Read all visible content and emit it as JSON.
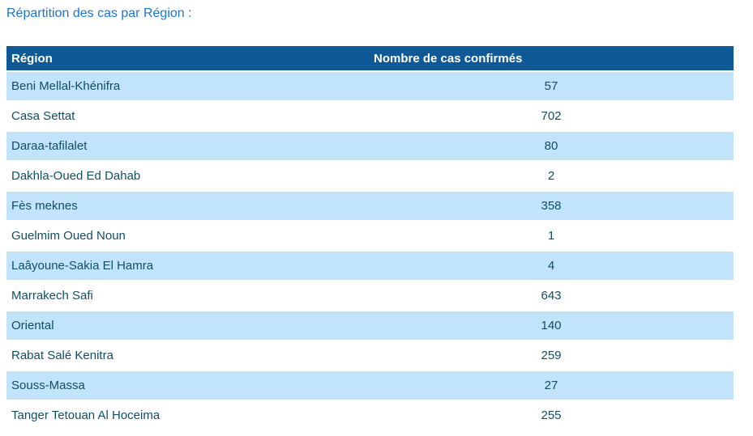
{
  "page": {
    "title": "Répartition des cas par Région :"
  },
  "table": {
    "columns": [
      {
        "label": "Région"
      },
      {
        "label": "Nombre de cas confirmés"
      }
    ],
    "rows": [
      {
        "region": "Beni Mellal-Khénifra",
        "cases": "57"
      },
      {
        "region": "Casa Settat",
        "cases": "702"
      },
      {
        "region": "Daraa-tafilalet",
        "cases": "80"
      },
      {
        "region": "Dakhla-Oued Ed Dahab",
        "cases": "2"
      },
      {
        "region": "Fès meknes",
        "cases": "358"
      },
      {
        "region": "Guelmim Oued Noun",
        "cases": "1"
      },
      {
        "region": "Laâyoune-Sakia El Hamra",
        "cases": "4"
      },
      {
        "region": "Marrakech Safi",
        "cases": "643"
      },
      {
        "region": "Oriental",
        "cases": "140"
      },
      {
        "region": "Rabat Salé Kenitra",
        "cases": "259"
      },
      {
        "region": "Souss-Massa",
        "cases": "27"
      },
      {
        "region": "Tanger Tetouan Al Hoceima",
        "cases": "255"
      }
    ]
  },
  "chart_data": {
    "type": "table",
    "title": "Répartition des cas par Région :",
    "categories": [
      "Beni Mellal-Khénifra",
      "Casa Settat",
      "Daraa-tafilalet",
      "Dakhla-Oued Ed Dahab",
      "Fès meknes",
      "Guelmim Oued Noun",
      "Laâyoune-Sakia El Hamra",
      "Marrakech Safi",
      "Oriental",
      "Rabat Salé Kenitra",
      "Souss-Massa",
      "Tanger Tetouan Al Hoceima"
    ],
    "values": [
      57,
      702,
      80,
      2,
      358,
      1,
      4,
      643,
      140,
      259,
      27,
      255
    ],
    "xlabel": "Région",
    "ylabel": "Nombre de cas confirmés"
  },
  "colors": {
    "title_text": "#1B75D0",
    "header_bg": "#0F5A96",
    "header_text": "#FFFFFF",
    "row_alt_bg": "#C2E4FB",
    "row_bg": "#FFFFFF",
    "cell_text": "#114E63"
  }
}
